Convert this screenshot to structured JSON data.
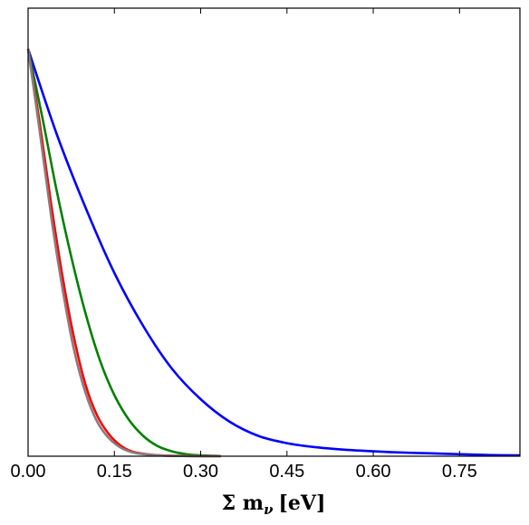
{
  "chart_data": {
    "type": "line",
    "title": "",
    "xlabel": "Σ m",
    "xlabel_sub": "ν",
    "xlabel_unit": "[eV]",
    "ylabel": "",
    "xlim": [
      0,
      0.855
    ],
    "ylim": [
      0,
      1.1
    ],
    "x_ticks": [
      0.0,
      0.15,
      0.3,
      0.45,
      0.6,
      0.75
    ],
    "x_tick_labels": [
      "0.00",
      "0.15",
      "0.30",
      "0.45",
      "0.60",
      "0.75"
    ],
    "y_ticks_shown": false,
    "grid": false,
    "legend": "none",
    "series": [
      {
        "color": "#0000ff",
        "x": [
          0.0,
          0.05,
          0.1,
          0.15,
          0.2,
          0.25,
          0.3,
          0.35,
          0.4,
          0.45,
          0.5,
          0.55,
          0.6,
          0.65,
          0.7,
          0.75,
          0.8,
          0.855
        ],
        "y": [
          1.0,
          0.79,
          0.61,
          0.45,
          0.32,
          0.215,
          0.14,
          0.085,
          0.05,
          0.032,
          0.022,
          0.016,
          0.012,
          0.009,
          0.007,
          0.005,
          0.003,
          0.002
        ]
      },
      {
        "color": "#008000",
        "x": [
          0.0,
          0.025,
          0.05,
          0.075,
          0.1,
          0.125,
          0.15,
          0.175,
          0.2,
          0.225,
          0.25,
          0.275,
          0.3,
          0.325,
          0.335
        ],
        "y": [
          1.0,
          0.83,
          0.65,
          0.49,
          0.35,
          0.235,
          0.15,
          0.09,
          0.05,
          0.025,
          0.012,
          0.005,
          0.002,
          0.001,
          0.0
        ]
      },
      {
        "color": "#ff0000",
        "x": [
          0.0,
          0.02,
          0.04,
          0.06,
          0.08,
          0.1,
          0.12,
          0.14,
          0.16,
          0.18,
          0.2,
          0.22,
          0.24,
          0.26,
          0.28,
          0.3,
          0.335
        ],
        "y": [
          1.0,
          0.82,
          0.62,
          0.44,
          0.29,
          0.175,
          0.1,
          0.055,
          0.027,
          0.012,
          0.006,
          0.003,
          0.0015,
          0.001,
          0.0005,
          0.0002,
          0.0
        ]
      },
      {
        "color": "#808080",
        "x": [
          0.0,
          0.02,
          0.04,
          0.06,
          0.08,
          0.1,
          0.12,
          0.14,
          0.16,
          0.18,
          0.2,
          0.22,
          0.24,
          0.26,
          0.28,
          0.3,
          0.335
        ],
        "y": [
          1.0,
          0.8,
          0.59,
          0.41,
          0.26,
          0.155,
          0.085,
          0.045,
          0.022,
          0.01,
          0.005,
          0.0025,
          0.0012,
          0.0006,
          0.0003,
          0.0001,
          0.0
        ]
      }
    ]
  }
}
